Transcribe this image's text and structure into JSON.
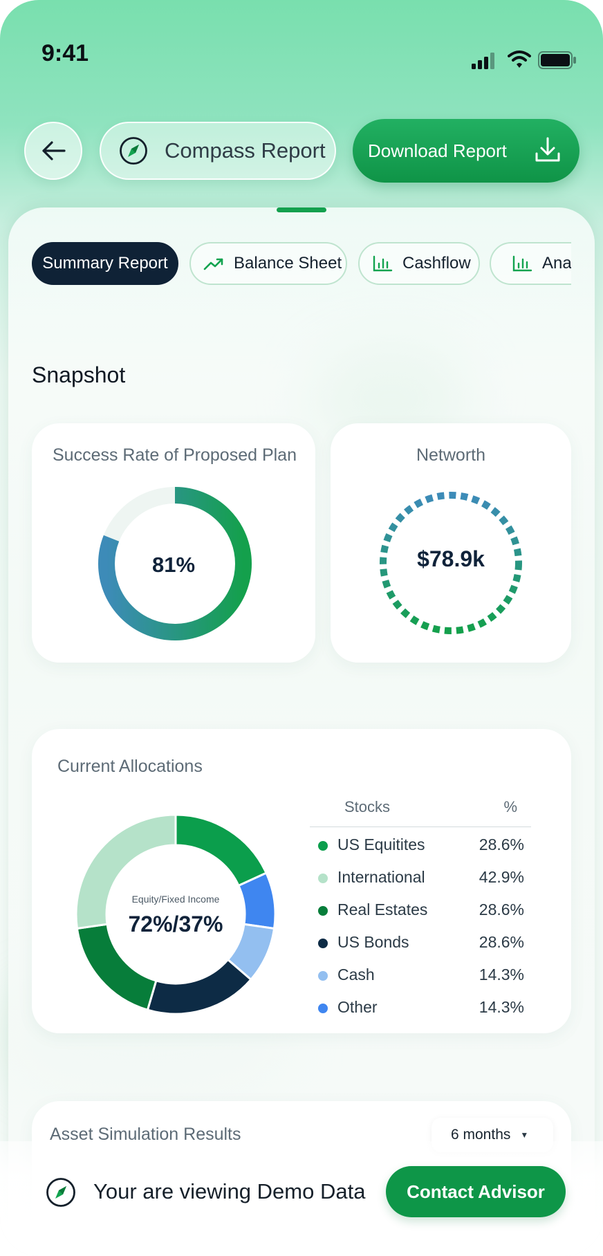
{
  "status_bar": {
    "time": "9:41"
  },
  "header": {
    "title": "Compass Report",
    "download_label": "Download Report"
  },
  "tabs": [
    {
      "label": "Summary Report",
      "active": true
    },
    {
      "label": "Balance Sheet",
      "active": false,
      "icon": "trend-up-icon"
    },
    {
      "label": "Cashflow",
      "active": false,
      "icon": "bar-chart-icon"
    },
    {
      "label": "Analysis",
      "active": false,
      "icon": "bar-chart-icon"
    }
  ],
  "snapshot": {
    "title": "Snapshot",
    "success": {
      "title": "Success Rate of Proposed Plan",
      "value": "81%",
      "fraction": 0.81
    },
    "networth": {
      "title": "Networth",
      "value": "$78.9k"
    }
  },
  "allocations": {
    "title": "Current Allocations",
    "caption": "Equity/Fixed Income",
    "center_value": "72%/37%",
    "col_stocks": "Stocks",
    "col_pct": "%",
    "rows": [
      {
        "name": "US Equitites",
        "pct": "28.6%",
        "color": "#0b9e4c"
      },
      {
        "name": "International",
        "pct": "42.9%",
        "color": "#b5e2c9"
      },
      {
        "name": "Real Estates",
        "pct": "28.6%",
        "color": "#077d3a"
      },
      {
        "name": "US Bonds",
        "pct": "28.6%",
        "color": "#0d2b45"
      },
      {
        "name": "Cash",
        "pct": "14.3%",
        "color": "#93bff0"
      },
      {
        "name": "Other",
        "pct": "14.3%",
        "color": "#3f86f0"
      }
    ]
  },
  "simulation": {
    "title": "Asset Simulation Results",
    "period": "6 months"
  },
  "footer": {
    "demo_text": "Your are viewing Demo Data",
    "contact_label": "Contact Advisor"
  },
  "colors": {
    "accent_green": "#0e9648",
    "dark_navy": "#0f2236",
    "teal_blue": "#3d8bb8"
  }
}
